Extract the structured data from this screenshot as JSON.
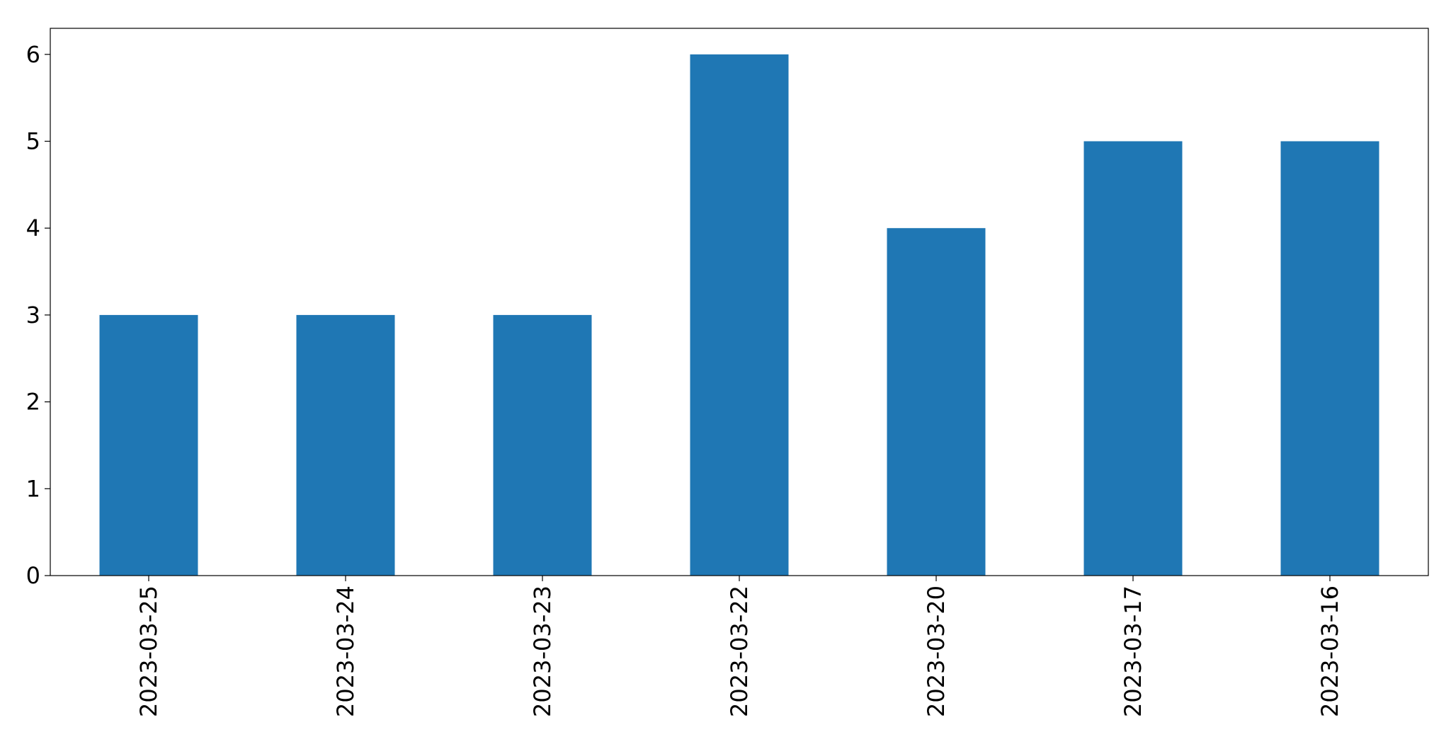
{
  "chart_data": {
    "type": "bar",
    "categories": [
      "2023-03-25",
      "2023-03-24",
      "2023-03-23",
      "2023-03-22",
      "2023-03-20",
      "2023-03-17",
      "2023-03-16"
    ],
    "values": [
      3,
      3,
      3,
      6,
      4,
      5,
      5
    ],
    "title": "",
    "xlabel": "",
    "ylabel": "",
    "ylim": [
      0,
      6.3
    ],
    "yticks": [
      "0",
      "1",
      "2",
      "3",
      "4",
      "5",
      "6"
    ],
    "grid": false,
    "bar_color": "#1f77b4",
    "axis_color": "#000000"
  }
}
